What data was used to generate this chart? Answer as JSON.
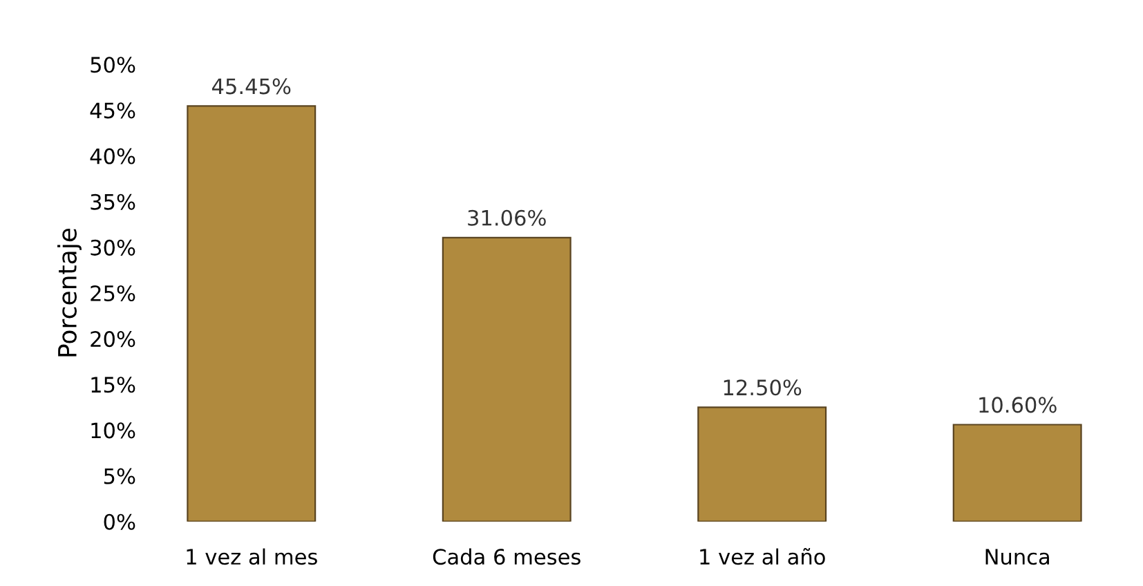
{
  "chart_data": {
    "type": "bar",
    "ylabel": "Porcentaje",
    "categories": [
      "1 vez al mes",
      "Cada 6 meses",
      "1 vez al año",
      "Nunca"
    ],
    "values": [
      45.45,
      31.06,
      12.5,
      10.6
    ],
    "value_labels": [
      "45.45%",
      "31.06%",
      "12.50%",
      "10.60%"
    ],
    "color": "#b08a3e",
    "ylim": [
      0,
      50
    ],
    "yticks": [
      {
        "value": 0,
        "label": "0%"
      },
      {
        "value": 5,
        "label": "5%"
      },
      {
        "value": 10,
        "label": "10%"
      },
      {
        "value": 15,
        "label": "15%"
      },
      {
        "value": 20,
        "label": "20%"
      },
      {
        "value": 25,
        "label": "25%"
      },
      {
        "value": 30,
        "label": "30%"
      },
      {
        "value": 35,
        "label": "35%"
      },
      {
        "value": 40,
        "label": "40%"
      },
      {
        "value": 45,
        "label": "45%"
      },
      {
        "value": 50,
        "label": "50%"
      }
    ],
    "grid": false,
    "legend": false
  }
}
